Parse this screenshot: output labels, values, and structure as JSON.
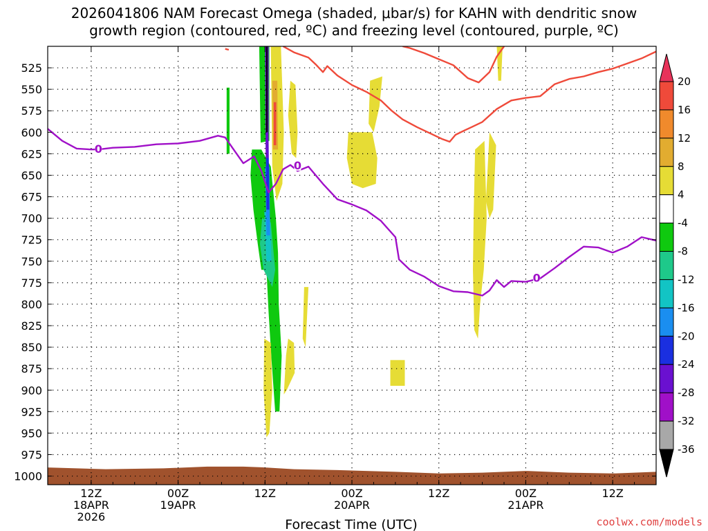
{
  "chart_data": {
    "type": "heatmap",
    "title_line1": "2026041806 NAM Forecast Omega (shaded, μbar/s) for KAHN with dendritic snow",
    "title_line2": "growth region (contoured, red, ºC) and freezing level (contoured, purple, ºC)",
    "xlabel": "Forecast Time (UTC)",
    "credit": "coolwx.com/models",
    "y_axis": {
      "unit": "hPa",
      "range": [
        500,
        1010
      ],
      "ticks": [
        525,
        550,
        575,
        600,
        625,
        650,
        675,
        700,
        725,
        750,
        775,
        800,
        825,
        850,
        875,
        900,
        925,
        950,
        975,
        1000
      ]
    },
    "x_axis": {
      "unit": "forecast hour",
      "range": [
        0,
        84
      ],
      "ticks": [
        {
          "hour": 6,
          "line1": "12Z",
          "line2": "18APR",
          "line3": "2026"
        },
        {
          "hour": 18,
          "line1": "00Z",
          "line2": "19APR",
          "line3": ""
        },
        {
          "hour": 30,
          "line1": "12Z",
          "line2": "",
          "line3": ""
        },
        {
          "hour": 42,
          "line1": "00Z",
          "line2": "20APR",
          "line3": ""
        },
        {
          "hour": 54,
          "line1": "12Z",
          "line2": "",
          "line3": ""
        },
        {
          "hour": 66,
          "line1": "00Z",
          "line2": "21APR",
          "line3": ""
        },
        {
          "hour": 78,
          "line1": "12Z",
          "line2": "",
          "line3": ""
        }
      ]
    },
    "colorbar": {
      "labels": [
        "20",
        "16",
        "12",
        "8",
        "4",
        "-4",
        "-8",
        "-12",
        "-16",
        "-20",
        "-24",
        "-28",
        "-32",
        "-36"
      ],
      "colors": [
        "#e8335a",
        "#ef4a3a",
        "#f08a2c",
        "#e2ac30",
        "#e6dc35",
        "#ffffff",
        "#0fc90f",
        "#1ec98a",
        "#12c4c4",
        "#1a8ef0",
        "#1a2fe0",
        "#6a10d0",
        "#a010c8",
        "#a8a8a8",
        "#000000"
      ]
    },
    "freezing_level": {
      "label": "0",
      "color": "#a010c8",
      "points": [
        [
          0,
          596
        ],
        [
          2,
          610
        ],
        [
          4,
          619
        ],
        [
          6,
          620
        ],
        [
          7,
          620
        ],
        [
          9,
          618
        ],
        [
          12,
          617
        ],
        [
          15,
          614
        ],
        [
          18,
          613
        ],
        [
          21,
          610
        ],
        [
          23.5,
          604
        ],
        [
          24.5,
          606
        ],
        [
          25.5,
          618
        ],
        [
          27,
          636
        ],
        [
          28.5,
          628
        ],
        [
          29.5,
          645
        ],
        [
          30.5,
          670
        ],
        [
          31.5,
          660
        ],
        [
          32.5,
          643
        ],
        [
          33.5,
          638
        ],
        [
          34.5,
          645
        ],
        [
          36,
          640
        ],
        [
          38,
          660
        ],
        [
          40,
          678
        ],
        [
          42,
          684
        ],
        [
          44,
          691
        ],
        [
          46,
          703
        ],
        [
          48,
          722
        ],
        [
          48.5,
          748
        ],
        [
          50,
          760
        ],
        [
          52,
          768
        ],
        [
          54,
          779
        ],
        [
          56,
          785
        ],
        [
          58,
          786
        ],
        [
          60,
          790
        ],
        [
          61,
          784
        ],
        [
          62,
          772
        ],
        [
          63,
          780
        ],
        [
          64,
          773
        ],
        [
          66,
          774
        ],
        [
          68,
          770
        ],
        [
          70,
          758
        ],
        [
          72,
          745
        ],
        [
          74,
          733
        ],
        [
          76,
          734
        ],
        [
          78,
          740
        ],
        [
          80,
          733
        ],
        [
          82,
          722
        ],
        [
          84,
          726
        ]
      ],
      "label_points": [
        [
          7,
          620
        ],
        [
          34.5,
          639
        ],
        [
          67.5,
          770
        ]
      ]
    },
    "dgz_contours": {
      "color": "#ef4a3a",
      "lines": [
        [
          [
            24.5,
            503
          ],
          [
            25,
            504
          ]
        ],
        [
          [
            32.5,
            500
          ],
          [
            34,
            507
          ],
          [
            36,
            513
          ],
          [
            37,
            521
          ],
          [
            38,
            530
          ],
          [
            38.6,
            523
          ],
          [
            40,
            534
          ],
          [
            42,
            545
          ],
          [
            44,
            553
          ],
          [
            46,
            563
          ],
          [
            47.5,
            575
          ],
          [
            49,
            585
          ],
          [
            51,
            594
          ],
          [
            53,
            602
          ],
          [
            54.5,
            608
          ],
          [
            55.5,
            611
          ],
          [
            56.3,
            603
          ],
          [
            57.5,
            598
          ],
          [
            58.5,
            594
          ],
          [
            60,
            588
          ],
          [
            62,
            573
          ],
          [
            64,
            563
          ],
          [
            66,
            560
          ],
          [
            68,
            558
          ],
          [
            70,
            544
          ],
          [
            72,
            538
          ],
          [
            74,
            535
          ],
          [
            76,
            530
          ],
          [
            78,
            526
          ],
          [
            80,
            520
          ],
          [
            82,
            514
          ],
          [
            84,
            506
          ]
        ],
        [
          [
            49,
            500
          ],
          [
            50,
            502
          ],
          [
            52,
            508
          ],
          [
            54,
            515
          ],
          [
            56,
            522
          ],
          [
            58,
            537
          ],
          [
            59.5,
            542
          ],
          [
            61,
            530
          ],
          [
            62,
            512
          ],
          [
            63,
            500
          ]
        ]
      ]
    },
    "omega_regions": [
      {
        "name": "green-core",
        "color": "#0fc90f",
        "points": [
          [
            28.2,
            620
          ],
          [
            29.5,
            620
          ],
          [
            30.8,
            640
          ],
          [
            31.5,
            700
          ],
          [
            31.8,
            740
          ],
          [
            31.9,
            800
          ],
          [
            32.3,
            860
          ],
          [
            32.0,
            925
          ],
          [
            31.4,
            925
          ],
          [
            30.9,
            865
          ],
          [
            30.5,
            810
          ],
          [
            30.2,
            760
          ],
          [
            29.5,
            760
          ],
          [
            29.0,
            730
          ],
          [
            28.4,
            690
          ],
          [
            28.0,
            650
          ]
        ]
      },
      {
        "name": "green-upper",
        "color": "#0fc90f",
        "points": [
          [
            29.2,
            500
          ],
          [
            30.6,
            500
          ],
          [
            30.6,
            610
          ],
          [
            29.4,
            612
          ]
        ]
      },
      {
        "name": "green-left-strip",
        "color": "#0fc90f",
        "points": [
          [
            24.7,
            548
          ],
          [
            25.1,
            548
          ],
          [
            25.1,
            625
          ],
          [
            24.7,
            625
          ]
        ]
      },
      {
        "name": "cyan-core",
        "color": "#1ec98a",
        "points": [
          [
            29.6,
            700
          ],
          [
            30.8,
            705
          ],
          [
            31.4,
            760
          ],
          [
            31.0,
            780
          ],
          [
            29.8,
            760
          ],
          [
            29.3,
            730
          ]
        ]
      },
      {
        "name": "cyan-inner",
        "color": "#12c4c4",
        "points": [
          [
            29.9,
            690
          ],
          [
            30.7,
            700
          ],
          [
            30.9,
            750
          ],
          [
            30.2,
            750
          ]
        ]
      },
      {
        "name": "blue-core",
        "color": "#1a8ef0",
        "points": [
          [
            30.0,
            640
          ],
          [
            30.6,
            640
          ],
          [
            30.7,
            720
          ],
          [
            30.2,
            720
          ]
        ]
      },
      {
        "name": "indigo-core",
        "color": "#1a2fe0",
        "points": [
          [
            30.1,
            610
          ],
          [
            30.5,
            610
          ],
          [
            30.6,
            690
          ],
          [
            30.2,
            690
          ]
        ]
      },
      {
        "name": "purple-core",
        "color": "#6a10d0",
        "points": [
          [
            30.0,
            500
          ],
          [
            30.5,
            500
          ],
          [
            30.5,
            630
          ],
          [
            30.1,
            630
          ]
        ]
      },
      {
        "name": "black-core",
        "color": "#000000",
        "points": [
          [
            30.15,
            500
          ],
          [
            30.35,
            500
          ],
          [
            30.35,
            600
          ],
          [
            30.15,
            600
          ]
        ]
      },
      {
        "name": "yellow-dgz-column",
        "color": "#e6dc35",
        "points": [
          [
            30.8,
            500
          ],
          [
            32.2,
            500
          ],
          [
            32.6,
            600
          ],
          [
            32.4,
            660
          ],
          [
            31.6,
            680
          ],
          [
            31.0,
            640
          ]
        ]
      },
      {
        "name": "orange-dgz-column",
        "color": "#e2ac30",
        "points": [
          [
            31.0,
            540
          ],
          [
            31.7,
            540
          ],
          [
            31.8,
            620
          ],
          [
            31.1,
            620
          ]
        ]
      },
      {
        "name": "red-dgz-column",
        "color": "#ef4a3a",
        "points": [
          [
            31.2,
            565
          ],
          [
            31.55,
            565
          ],
          [
            31.55,
            615
          ],
          [
            31.2,
            615
          ]
        ]
      },
      {
        "name": "yellow-mid-left",
        "color": "#e6dc35",
        "points": [
          [
            33.5,
            540
          ],
          [
            34.2,
            545
          ],
          [
            34.5,
            600
          ],
          [
            34.3,
            630
          ],
          [
            33.7,
            625
          ],
          [
            33.2,
            580
          ]
        ]
      },
      {
        "name": "yellow-mid-block",
        "color": "#e6dc35",
        "points": [
          [
            41.5,
            600
          ],
          [
            44.8,
            600
          ],
          [
            45.5,
            630
          ],
          [
            45.3,
            660
          ],
          [
            43.5,
            665
          ],
          [
            42.0,
            660
          ],
          [
            41.3,
            630
          ]
        ]
      },
      {
        "name": "yellow-mid-diag",
        "color": "#e6dc35",
        "points": [
          [
            44.5,
            540
          ],
          [
            46.2,
            535
          ],
          [
            45.8,
            570
          ],
          [
            45.0,
            600
          ],
          [
            44.3,
            590
          ]
        ]
      },
      {
        "name": "yellow-right-high",
        "color": "#e6dc35",
        "points": [
          [
            62.0,
            500
          ],
          [
            62.8,
            500
          ],
          [
            62.6,
            540
          ],
          [
            62.2,
            540
          ]
        ]
      },
      {
        "name": "yellow-right-block",
        "color": "#e6dc35",
        "points": [
          [
            61.0,
            600
          ],
          [
            61.9,
            615
          ],
          [
            61.5,
            690
          ],
          [
            61.0,
            700
          ],
          [
            60.5,
            680
          ]
        ]
      },
      {
        "name": "yellow-right-column",
        "color": "#e6dc35",
        "points": [
          [
            59.0,
            620
          ],
          [
            60.3,
            610
          ],
          [
            60.6,
            700
          ],
          [
            60.2,
            760
          ],
          [
            59.7,
            800
          ],
          [
            59.4,
            840
          ],
          [
            58.9,
            830
          ],
          [
            58.7,
            760
          ],
          [
            58.8,
            700
          ]
        ]
      },
      {
        "name": "yellow-low-1",
        "color": "#e6dc35",
        "points": [
          [
            29.9,
            840
          ],
          [
            30.8,
            845
          ],
          [
            31.0,
            900
          ],
          [
            30.6,
            950
          ],
          [
            30.2,
            955
          ],
          [
            29.8,
            900
          ]
        ]
      },
      {
        "name": "yellow-low-2",
        "color": "#e6dc35",
        "points": [
          [
            33.2,
            840
          ],
          [
            34.0,
            845
          ],
          [
            34.1,
            880
          ],
          [
            33.0,
            900
          ],
          [
            32.6,
            905
          ],
          [
            32.9,
            860
          ]
        ]
      },
      {
        "name": "yellow-low-3",
        "color": "#e6dc35",
        "points": [
          [
            35.4,
            780
          ],
          [
            36.0,
            780
          ],
          [
            35.6,
            850
          ],
          [
            35.2,
            840
          ]
        ]
      },
      {
        "name": "yellow-low-4",
        "color": "#e6dc35",
        "points": [
          [
            47.3,
            865
          ],
          [
            49.3,
            865
          ],
          [
            49.3,
            895
          ],
          [
            47.3,
            895
          ]
        ]
      }
    ],
    "surface_terrain": {
      "color": "#a0522d",
      "top_points": [
        [
          0,
          990
        ],
        [
          8,
          992
        ],
        [
          16,
          991
        ],
        [
          22,
          989
        ],
        [
          27,
          989
        ],
        [
          30,
          990
        ],
        [
          34,
          992
        ],
        [
          40,
          993
        ],
        [
          48,
          995
        ],
        [
          54,
          997
        ],
        [
          60,
          996
        ],
        [
          66,
          994
        ],
        [
          72,
          996
        ],
        [
          78,
          997
        ],
        [
          84,
          995
        ]
      ]
    }
  }
}
